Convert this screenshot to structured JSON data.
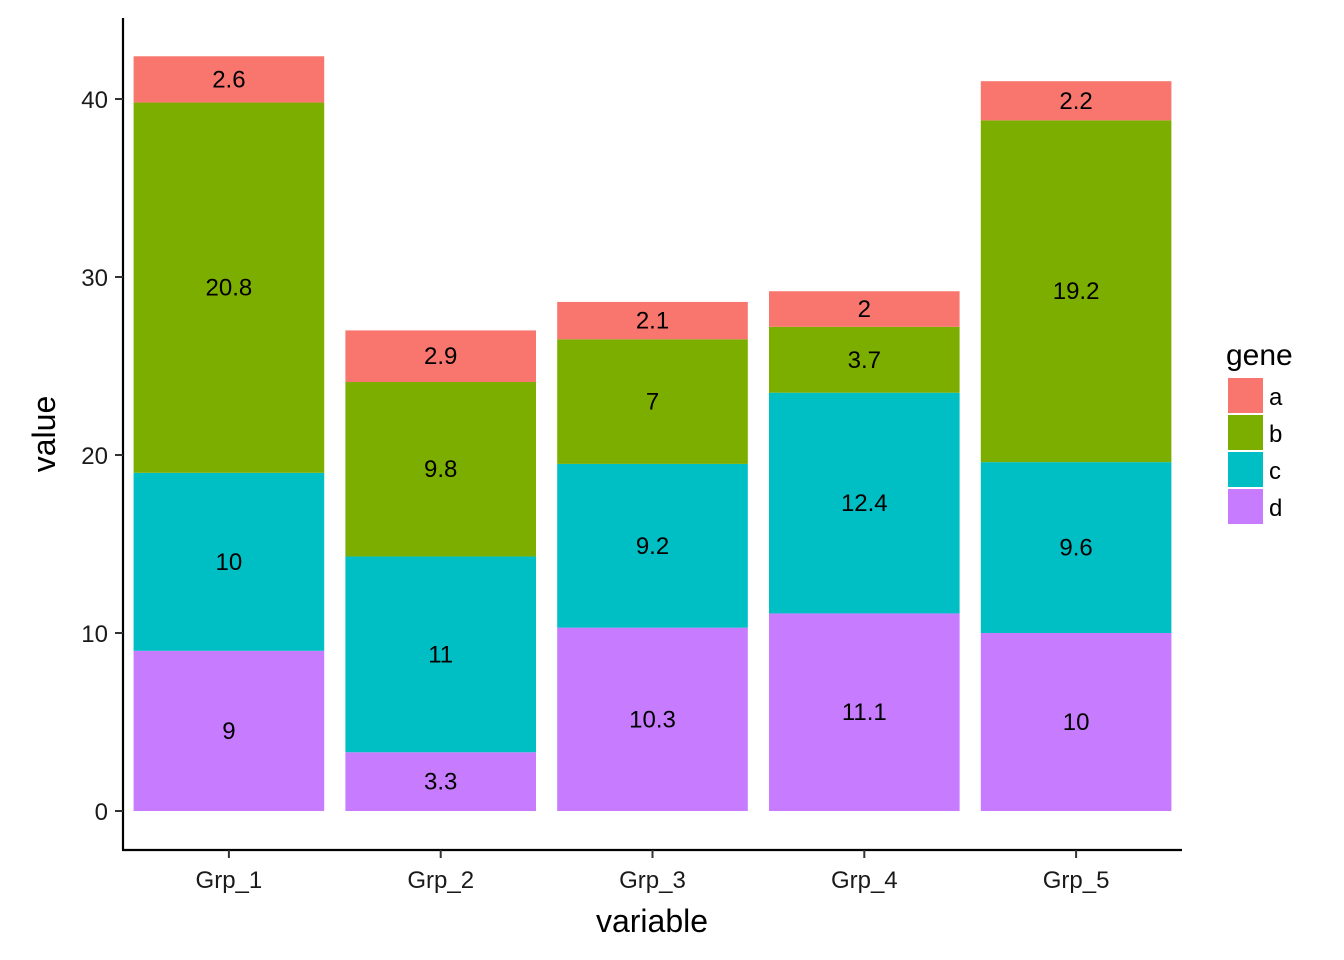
{
  "chart_data": {
    "type": "bar",
    "stacked": true,
    "categories": [
      "Grp_1",
      "Grp_2",
      "Grp_3",
      "Grp_4",
      "Grp_5"
    ],
    "series": [
      {
        "name": "a",
        "color": "#F8766D",
        "values": [
          2.6,
          2.9,
          2.1,
          2,
          2.2
        ]
      },
      {
        "name": "b",
        "color": "#7CAE00",
        "values": [
          20.8,
          9.8,
          7,
          3.7,
          19.2
        ]
      },
      {
        "name": "c",
        "color": "#00BFC4",
        "values": [
          10,
          11,
          9.2,
          12.4,
          9.6
        ]
      },
      {
        "name": "d",
        "color": "#C77CFF",
        "values": [
          9,
          3.3,
          10.3,
          11.1,
          10
        ]
      }
    ],
    "stack_order_bottom_to_top": [
      "d",
      "c",
      "b",
      "a"
    ],
    "xlabel": "variable",
    "ylabel": "value",
    "yticks": [
      0,
      10,
      20,
      30,
      40
    ],
    "ylim": [
      -2.1,
      44.6
    ],
    "legend": {
      "title": "gene",
      "position": "right"
    },
    "grid": false,
    "data_labels": true
  }
}
